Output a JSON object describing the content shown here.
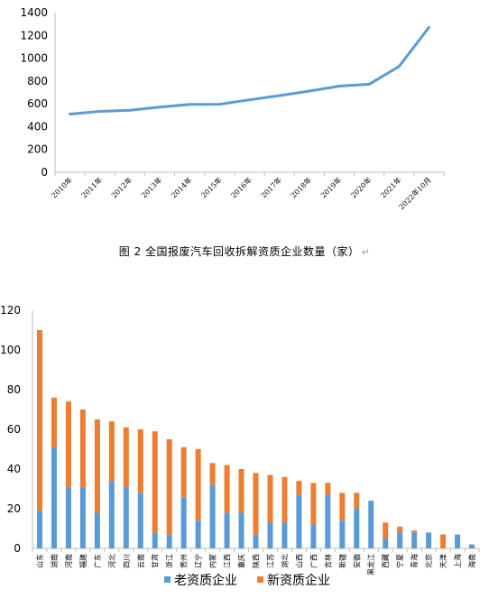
{
  "caption": {
    "text": "图 2  全国报废汽车回收拆解资质企业数量（家）",
    "mark": "↵"
  },
  "chart_data": [
    {
      "type": "line",
      "categories": [
        "2010年",
        "2011年",
        "2012年",
        "2013年",
        "2014年",
        "2015年",
        "2016年",
        "2017年",
        "2018年",
        "2019年",
        "2020年",
        "2021年",
        "2022年10月"
      ],
      "series": [
        {
          "values": [
            510,
            534,
            543,
            572,
            595,
            596,
            635,
            672,
            712,
            755,
            772,
            928,
            1270
          ]
        }
      ],
      "ylim": [
        0,
        1400
      ],
      "yticks": [
        0,
        200,
        400,
        600,
        800,
        1000,
        1200,
        1400
      ],
      "color": "#5B9BD5",
      "grid": false,
      "title": "",
      "xlabel": "",
      "ylabel": ""
    },
    {
      "type": "bar",
      "stacked": true,
      "categories": [
        "山东",
        "湖南",
        "河南",
        "福建",
        "广东",
        "河北",
        "四川",
        "云南",
        "甘肃",
        "浙江",
        "贵州",
        "辽宁",
        "内蒙",
        "江西",
        "重庆",
        "陕西",
        "江苏",
        "湖北",
        "山西",
        "广西",
        "吉林",
        "新疆",
        "安徽",
        "黑龙江",
        "西藏",
        "宁夏",
        "青海",
        "北京",
        "天津",
        "上海",
        "海南"
      ],
      "series": [
        {
          "name": "老资质企业",
          "color": "#5B9BD5",
          "values": [
            19,
            51,
            31,
            31,
            18,
            34,
            31,
            28,
            8,
            7,
            26,
            14,
            32,
            18,
            18,
            7,
            13,
            13,
            27,
            12,
            27,
            14,
            20,
            24,
            5,
            8,
            8,
            8,
            0,
            7,
            2
          ]
        },
        {
          "name": "新资质企业",
          "color": "#ED7D31",
          "values": [
            91,
            25,
            43,
            39,
            47,
            30,
            30,
            32,
            51,
            48,
            25,
            36,
            11,
            24,
            22,
            31,
            24,
            23,
            7,
            21,
            6,
            14,
            8,
            0,
            8,
            3,
            1,
            0,
            7,
            0,
            0
          ]
        }
      ],
      "ylim": [
        0,
        120
      ],
      "yticks": [
        0,
        20,
        40,
        60,
        80,
        100,
        120
      ],
      "legend": "bottom",
      "grid": false,
      "title": "",
      "xlabel": "",
      "ylabel": ""
    }
  ]
}
